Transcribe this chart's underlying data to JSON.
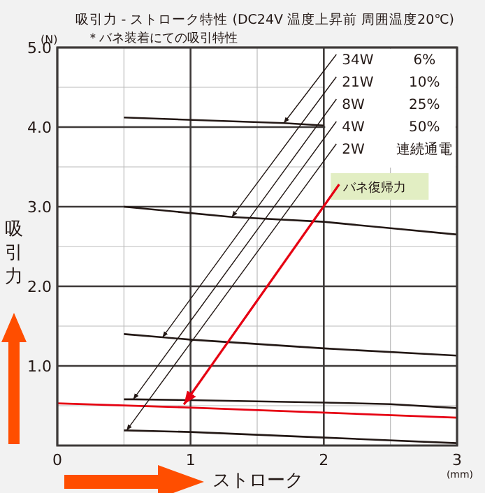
{
  "chart_data": {
    "type": "line",
    "title": "吸引力 - ストローク特性 (DC24V 温度上昇前 周囲温度20℃)",
    "subtitle": "＊バネ装着にての吸引特性",
    "xlabel": "ストローク",
    "ylabel": "吸引力",
    "xlim": [
      0,
      3
    ],
    "ylim": [
      0,
      5
    ],
    "xticks": [
      0,
      1,
      2,
      3
    ],
    "yticks": [
      {
        "value": 1,
        "label": "1.0"
      },
      {
        "value": 2,
        "label": "2.0"
      },
      {
        "value": 3,
        "label": "3.0"
      },
      {
        "value": 4,
        "label": "4.0"
      },
      {
        "value": 5,
        "label": "5.0"
      }
    ],
    "grid": true,
    "legend": "top right",
    "series": [
      {
        "name": "34W",
        "color": "#231815",
        "x": [
          0.5,
          1.7,
          2
        ],
        "values": [
          4.12,
          4.05,
          4.02
        ]
      },
      {
        "name": "21W",
        "color": "#231815",
        "x": [
          0.5,
          1.31,
          2,
          2.5,
          3
        ],
        "values": [
          3.0,
          2.87,
          2.81,
          2.73,
          2.65
        ]
      },
      {
        "name": "8W",
        "color": "#231815",
        "x": [
          0.5,
          0.79,
          1,
          2,
          3
        ],
        "values": [
          1.4,
          1.36,
          1.33,
          1.22,
          1.13
        ]
      },
      {
        "name": "4W",
        "color": "#231815",
        "x": [
          0.5,
          0.57,
          1,
          2,
          2.5,
          3
        ],
        "values": [
          0.58,
          0.58,
          0.57,
          0.54,
          0.52,
          0.47
        ]
      },
      {
        "name": "2W",
        "color": "#231815",
        "x": [
          0.5,
          0.52,
          1,
          2,
          3
        ],
        "values": [
          0.19,
          0.19,
          0.17,
          0.1,
          0.03
        ]
      },
      {
        "name": "バネ復帰力",
        "color": "#e60012",
        "x": [
          0,
          0.95,
          3
        ],
        "values": [
          0.53,
          0.48,
          0.35
        ]
      }
    ],
    "annotations": [
      "6%",
      "10%",
      "25%",
      "50%",
      "連続通電",
      "(N)",
      "(mm)"
    ]
  }
}
